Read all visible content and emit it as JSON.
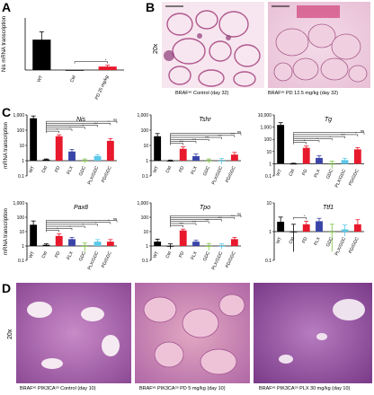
{
  "panels": {
    "A": "A",
    "B": "B",
    "C": "C",
    "D": "D"
  },
  "histology": {
    "mag_B": "20x",
    "mag_D": "20x",
    "B_captions": [
      "BRAFᵛᵉ Control (day 32)",
      "BRAFᵛᵉ PD 12.5 mg/kg (day 32)"
    ],
    "D_captions": [
      "BRAFᵛᵉ PIK3CAᶜᵃ Control (day 10)",
      "BRAFᵛᵉ PIK3CAᶜᵃ PD 5 mg/kg (day 10)",
      "BRAFᵛᵉ PIK3CAᶜᵃ PLX 30 mg/kg (day 10)"
    ]
  },
  "colors": {
    "WT": "#000000",
    "Ctrl": "#000000",
    "PD": "#e8192c",
    "PLX": "#3a44a8",
    "GDC": "#7dc242",
    "PLX/GDC": "#5bc8e8",
    "PD/GDC": "#f4ec2a"
  },
  "chart_data": [
    {
      "id": "A",
      "type": "bar",
      "ylabel": "Nis mRNA transcription",
      "ylim": [
        0,
        60
      ],
      "categories": [
        "WT",
        "Ctrl",
        "PD 25 mg/kg"
      ],
      "values": [
        35,
        0,
        4
      ],
      "errors": [
        9,
        0,
        1.5
      ],
      "ticks": [],
      "sig": [
        "*"
      ]
    },
    {
      "id": "Nis",
      "type": "bar",
      "title": "Nis",
      "log": true,
      "ylim": [
        0.1,
        1000
      ],
      "ylabel": "mRNA transcription",
      "categories": [
        "WT",
        "Ctrl",
        "PD",
        "PLX",
        "GDC",
        "PLX/GDC",
        "PD/GDC"
      ],
      "values": [
        600,
        1.2,
        40,
        4,
        1,
        2,
        20
      ],
      "errors": [
        250,
        0.1,
        10,
        1.5,
        0.3,
        0.5,
        8
      ],
      "ticks": [
        "0.1",
        "1",
        "10",
        "100",
        "1,000"
      ],
      "sig": [
        "*",
        "*",
        "*",
        "***",
        "*",
        "ns"
      ]
    },
    {
      "id": "Tshr",
      "type": "bar",
      "title": "Tshr",
      "log": true,
      "ylim": [
        0.1,
        1000
      ],
      "categories": [
        "WT",
        "Ctrl",
        "PD",
        "PLX",
        "GDC",
        "PLX/GDC",
        "PD/GDC"
      ],
      "values": [
        40,
        1,
        6,
        2,
        1,
        1,
        2.5
      ],
      "errors": [
        20,
        0.1,
        2,
        0.8,
        0.3,
        0.4,
        1
      ],
      "ticks": [
        "0.1",
        "1",
        "10",
        "100",
        "1,000"
      ],
      "sig": [
        "***",
        "***",
        "***",
        "***",
        "***",
        "ns"
      ]
    },
    {
      "id": "Tg",
      "type": "bar",
      "title": "Tg",
      "log": true,
      "ylim": [
        0.1,
        10000
      ],
      "categories": [
        "WT",
        "Ctrl",
        "PD",
        "PLX",
        "GDC",
        "PLX/GDC",
        "PD/GDC"
      ],
      "values": [
        1500,
        1,
        20,
        3,
        1,
        2,
        15
      ],
      "errors": [
        800,
        0.1,
        8,
        1.5,
        0.6,
        0.8,
        6
      ],
      "ticks": [
        "0.1",
        "1",
        "10",
        "100",
        "1,000",
        "10,000"
      ],
      "sig": [
        "*",
        "*",
        "*",
        "***",
        "*",
        "ns"
      ]
    },
    {
      "id": "Pax8",
      "type": "bar",
      "title": "Pax8",
      "log": true,
      "ylim": [
        0.1,
        1000
      ],
      "ylabel": "mRNA transcription",
      "categories": [
        "WT",
        "Ctrl",
        "PD",
        "PLX",
        "GDC",
        "PLX/GDC",
        "PD/GDC"
      ],
      "values": [
        30,
        1.2,
        5,
        3,
        1,
        2,
        2
      ],
      "errors": [
        25,
        0.2,
        2,
        1,
        0.6,
        0.8,
        0.8
      ],
      "ticks": [
        "0.1",
        "1",
        "10",
        "100",
        "1,000"
      ],
      "sig": [
        "*",
        "*",
        "*",
        "*",
        "*",
        "ns"
      ]
    },
    {
      "id": "Tpo",
      "type": "bar",
      "title": "Tpo",
      "log": true,
      "ylim": [
        0.1,
        1000
      ],
      "categories": [
        "WT",
        "Ctrl",
        "PD",
        "PLX",
        "GDC",
        "PLX/GDC",
        "PD/GDC"
      ],
      "values": [
        2,
        1,
        12,
        2,
        1,
        1,
        3
      ],
      "errors": [
        1,
        0.4,
        3,
        0.5,
        0.5,
        0.4,
        1
      ],
      "ticks": [
        "0.1",
        "1",
        "10",
        "100",
        "1,000"
      ],
      "sig": [
        "***",
        "***",
        "***",
        "***",
        "***",
        "ns"
      ]
    },
    {
      "id": "Ttf1",
      "type": "bar",
      "title": "Ttf1",
      "log": true,
      "ylim": [
        0.1,
        10
      ],
      "categories": [
        "WT",
        "Ctrl",
        "PD",
        "PLX",
        "GDC",
        "PLX/GDC",
        "PD/GDC"
      ],
      "values": [
        2.2,
        1,
        1.8,
        2.3,
        1,
        1.2,
        1.8
      ],
      "errors": [
        1,
        0.8,
        0.5,
        0.6,
        0.8,
        0.5,
        0.8
      ],
      "ticks": [
        "0.1",
        "1",
        "10"
      ],
      "sig": [
        "*"
      ]
    }
  ]
}
